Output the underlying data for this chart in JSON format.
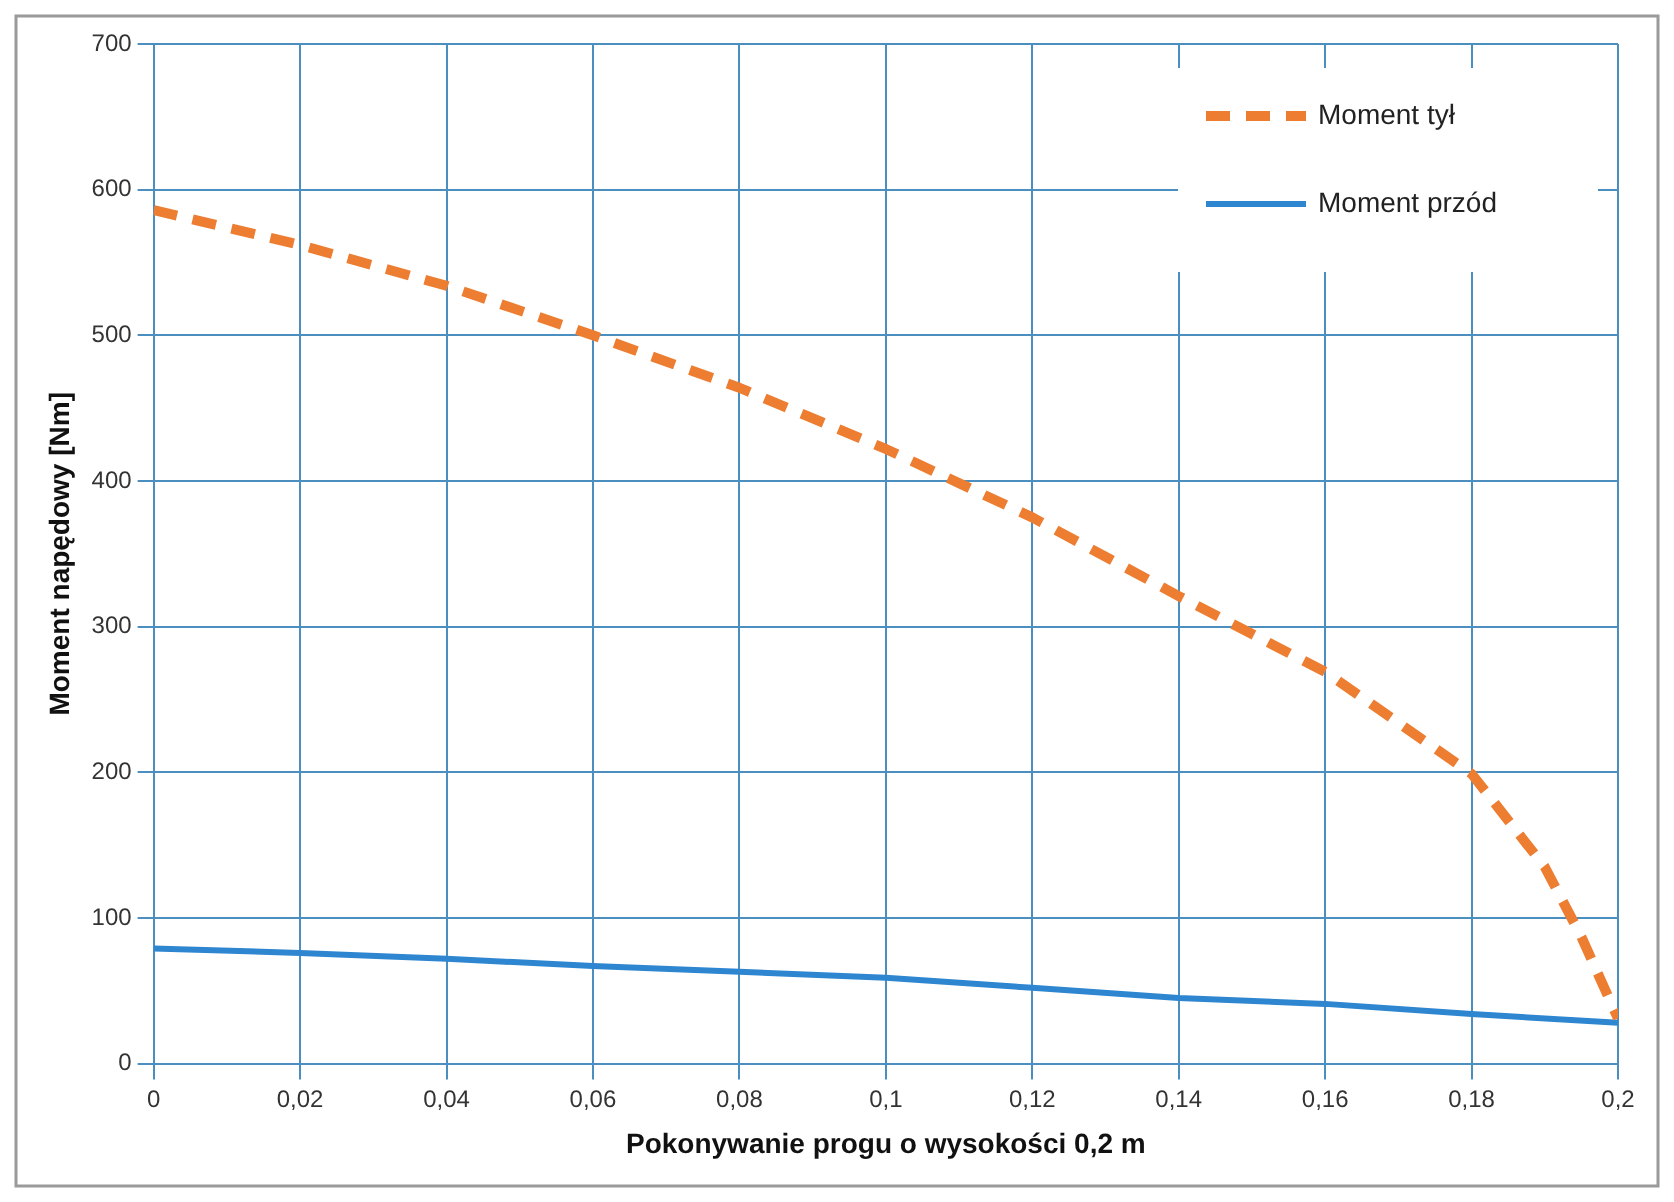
{
  "chart_data": {
    "type": "line",
    "xlabel": "Pokonywanie progu o wysokości 0,2 m",
    "ylabel": "Moment napędowy [Nm]",
    "xlim": [
      0,
      0.2
    ],
    "xticks": [
      0,
      {
        "value": 0.02,
        "label": "0,02"
      },
      {
        "value": 0.04,
        "label": "0,04"
      },
      {
        "value": 0.06,
        "label": "0,06"
      },
      {
        "value": 0.08,
        "label": "0,08"
      },
      {
        "value": 0.1,
        "label": "0,1"
      },
      {
        "value": 0.12,
        "label": "0,12"
      },
      {
        "value": 0.14,
        "label": "0,14"
      },
      {
        "value": 0.16,
        "label": "0,16"
      },
      {
        "value": 0.18,
        "label": "0,18"
      },
      {
        "value": 0.2,
        "label": "0,2"
      }
    ],
    "ylim": [
      0,
      700
    ],
    "yticks": [
      0,
      100,
      200,
      300,
      400,
      500,
      600,
      700
    ],
    "grid": true,
    "legend": "top right",
    "marker": "none",
    "series": [
      {
        "name": "Moment tył",
        "color": "#ed7d31",
        "line_style": "dashed",
        "x": [
          0,
          0.02,
          0.04,
          0.06,
          0.08,
          0.1,
          0.12,
          0.14,
          0.16,
          0.18,
          0.19,
          0.195,
          0.2
        ],
        "values": [
          586,
          562,
          534,
          500,
          464,
          422,
          375,
          321,
          269,
          199,
          135,
          87,
          31
        ]
      },
      {
        "name": "Moment przód",
        "color": "#2e86d0",
        "line_style": "solid",
        "x": [
          0,
          0.02,
          0.04,
          0.06,
          0.08,
          0.1,
          0.12,
          0.14,
          0.16,
          0.18,
          0.2
        ],
        "values": [
          79,
          76,
          72,
          67,
          63,
          59,
          52,
          45,
          41,
          34,
          28
        ]
      }
    ]
  }
}
